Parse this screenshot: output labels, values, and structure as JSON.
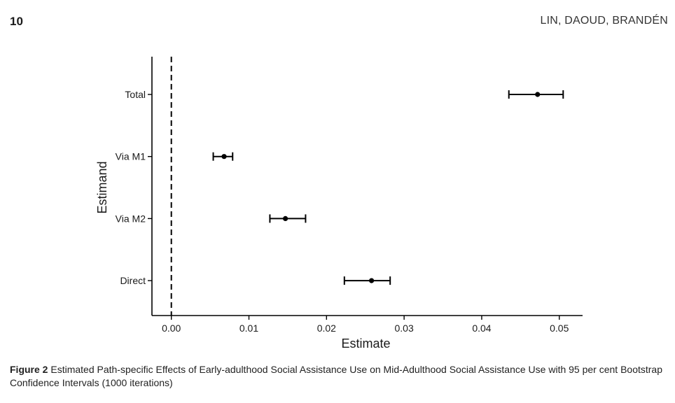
{
  "header": {
    "page_number": "10",
    "authors": "LIN, DAOUD, BRANDÉN"
  },
  "caption": {
    "label": "Figure 2",
    "text": " Estimated Path-specific Effects of Early-adulthood Social Assistance Use on Mid-Adulthood Social Assistance Use with 95 per cent Bootstrap Confidence Intervals (1000 iterations)"
  },
  "chart_data": {
    "type": "scatter",
    "subtype": "forest-plot with horizontal error bars",
    "xlabel": "Estimate",
    "ylabel": "Estimand",
    "xlim": [
      -0.0025,
      0.053
    ],
    "xticks": [
      0.0,
      0.01,
      0.02,
      0.03,
      0.04,
      0.05
    ],
    "xtick_labels": [
      "0.00",
      "0.01",
      "0.02",
      "0.03",
      "0.04",
      "0.05"
    ],
    "reference_line": {
      "x": 0.0,
      "style": "dashed"
    },
    "grid": false,
    "categories": [
      "Total",
      "Via M1",
      "Via M2",
      "Direct"
    ],
    "estimates": [
      0.0472,
      0.0068,
      0.0147,
      0.0258
    ],
    "ci_lower": [
      0.0435,
      0.0054,
      0.0127,
      0.0223
    ],
    "ci_upper": [
      0.0505,
      0.0079,
      0.0173,
      0.0282
    ],
    "color": "#000000"
  }
}
